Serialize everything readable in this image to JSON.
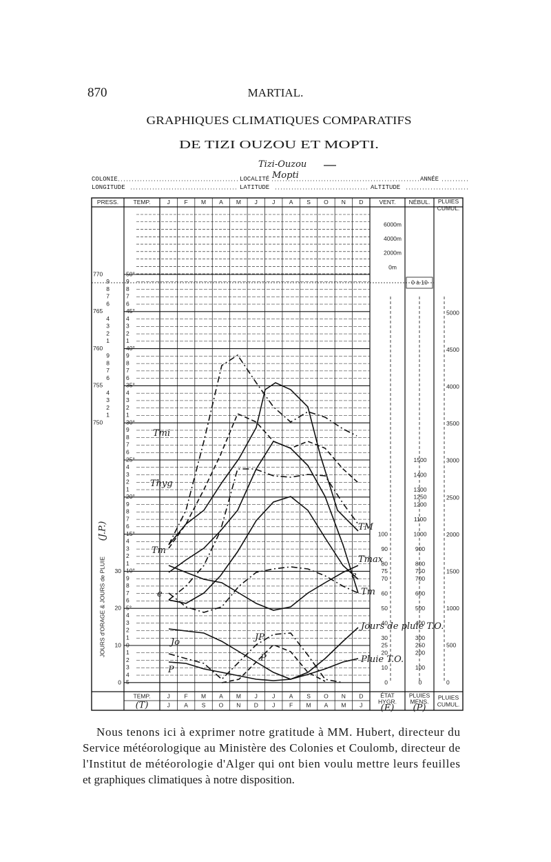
{
  "header": {
    "page_number": "870",
    "running_head": "MARTIAL.",
    "title_line_1": "GRAPHIQUES CLIMATIQUES COMPARATIFS",
    "title_line_2": "DE TIZI OUZOU ET MOPTI."
  },
  "form": {
    "colonie": "COLONIE",
    "localite": "LOCALITÉ",
    "annee": "ANNÉE",
    "longitude": "LONGITUDE",
    "latitude": "LATITUDE",
    "altitude": "ALTITUDE",
    "handwritten_place_1": "Tizi-Ouzou",
    "handwritten_place_2": "Mopti"
  },
  "table": {
    "col_press": "PRESS.",
    "col_temp": "TEMP.",
    "months": [
      "J",
      "F",
      "M",
      "A",
      "M",
      "J",
      "J",
      "A",
      "S",
      "O",
      "N",
      "D"
    ],
    "col_vent": "VENT.",
    "col_nebul": "NÉBUL.",
    "col_pluies_cumul_1": "PLUIES",
    "col_pluies_cumul_2": "CUMUL.",
    "altitudes": [
      "6000m",
      "4000m",
      "2000m",
      "0m"
    ],
    "nebul_range": "0 à 10",
    "pressure_labels": [
      "770",
      "765",
      "760",
      "755",
      "750"
    ],
    "temp_labels": [
      "50°",
      "45°",
      "40°",
      "35°",
      "30°",
      "25°",
      "20°",
      "15°",
      "10°",
      "5°"
    ],
    "minor_digits": [
      "9",
      "8",
      "7",
      "6",
      "4",
      "3",
      "2",
      "1"
    ],
    "day_digits": [
      "4",
      "3",
      "2",
      "1",
      "0",
      "1",
      "2",
      "3",
      "4",
      "5"
    ],
    "day_scale": [
      "30",
      "20",
      "10",
      "0"
    ],
    "hygro_labels": [
      "100",
      "90",
      "80",
      "75",
      "70",
      "60",
      "50",
      "40",
      "30",
      "25",
      "20",
      "10",
      "0"
    ],
    "pluies_mens_labels": [
      "1500",
      "1400",
      "1300",
      "1250",
      "1200",
      "1100",
      "1000",
      "900",
      "800",
      "750",
      "700",
      "600",
      "500",
      "400",
      "300",
      "250",
      "200",
      "100",
      "0"
    ],
    "pluies_cumul_labels": [
      "5000",
      "4500",
      "4000",
      "3500",
      "3000",
      "2500",
      "2000",
      "1500",
      "1000",
      "500",
      "0"
    ],
    "days_axis_title": "JOURS d'ORAGE & JOURS de PLUIE",
    "days_axis_symbol": "(J.P.)",
    "footer_temp": "TEMP.",
    "footer_temp_symbol": "(T)",
    "months_north": [
      "J",
      "F",
      "M",
      "A",
      "M",
      "J",
      "J",
      "A",
      "S",
      "O",
      "N",
      "D"
    ],
    "months_south": [
      "J",
      "A",
      "S",
      "O",
      "N",
      "D",
      "J",
      "F",
      "M",
      "A",
      "M",
      "J"
    ],
    "footer_etat_1": "ÉTAT",
    "footer_etat_2": "HYGR.",
    "footer_etat_symbol": "(E)",
    "footer_pluies_mens_1": "PLUIES",
    "footer_pluies_mens_2": "MENS.",
    "footer_pluies_symbol": "(P)",
    "footer_pluies_cumul_1": "PLUIES",
    "footer_pluies_cumul_2": "CUMUL."
  },
  "curve_labels": {
    "tmi": "Tmi",
    "thyg": "Thyg",
    "tm_left": "Tm",
    "tm_right": "TM",
    "tmax": "Tmax",
    "e_left": "e",
    "e_right": "e",
    "tm_small": "Tm",
    "jo": "Jo",
    "jp": "JP",
    "p_left": "P",
    "p_mid": "P",
    "jours_pluie": "Jours de pluie T.O.",
    "pluie": "Pluie T.O."
  },
  "footnote_lines": [
    "Nous tenons ici à exprimer notre gratitude à MM. Hubert, directeur du",
    "Service météorologique au Ministère des Colonies et Coulomb, directeur de",
    "l'Institut de météorologie d'Alger qui ont bien voulu mettre leurs feuilles",
    "et graphiques climatiques à notre disposition."
  ]
}
